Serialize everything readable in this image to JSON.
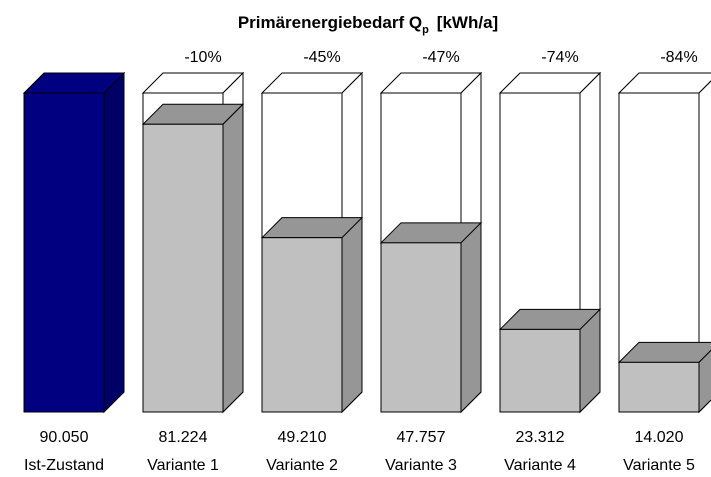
{
  "chart_data": {
    "type": "bar",
    "title": "Primärenergiebedarf Q",
    "title_subscript": "p",
    "title_unit": "[kWh/a]",
    "categories": [
      "Ist-Zustand",
      "Variante 1",
      "Variante 2",
      "Variante 3",
      "Variante 4",
      "Variante 5"
    ],
    "values": [
      90050,
      81224,
      49210,
      47757,
      23312,
      14020
    ],
    "value_labels": [
      "90.050",
      "81.224",
      "49.210",
      "47.757",
      "23.312",
      "14.020"
    ],
    "change_labels": [
      "",
      "-10%",
      "-45%",
      "-47%",
      "-74%",
      "-84%"
    ],
    "reference_value": 90050,
    "ylim": [
      0,
      90050
    ],
    "grid": false,
    "legend": "none",
    "colors": {
      "reference_front": "#000080",
      "reference_top": "#000080",
      "reference_side": "#000066",
      "variant_front": "#c0c0c0",
      "variant_top": "#969696",
      "variant_side": "#969696",
      "outline": "#000000"
    }
  }
}
